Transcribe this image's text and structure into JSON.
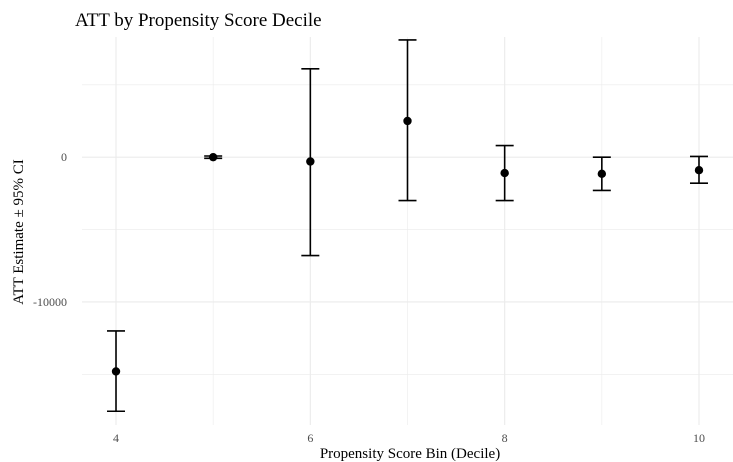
{
  "chart_data": {
    "type": "errorbar",
    "title": "ATT by Propensity Score Decile",
    "xlabel": "Propensity Score Bin (Decile)",
    "ylabel": "ATT Estimate ± 95% CI",
    "x_ticks": [
      4,
      6,
      8,
      10
    ],
    "y_ticks": [
      -10000,
      0
    ],
    "xlim": [
      3.65,
      10.35
    ],
    "ylim": [
      -18500,
      8300
    ],
    "grid": true,
    "points": [
      {
        "x": 4,
        "y": -14800,
        "lower": -17550,
        "upper": -12000
      },
      {
        "x": 5,
        "y": 0,
        "lower": -80,
        "upper": 80
      },
      {
        "x": 6,
        "y": -300,
        "lower": -6800,
        "upper": 6100
      },
      {
        "x": 7,
        "y": 2500,
        "lower": -3000,
        "upper": 8100
      },
      {
        "x": 8,
        "y": -1100,
        "lower": -3000,
        "upper": 800
      },
      {
        "x": 9,
        "y": -1150,
        "lower": -2300,
        "upper": 0
      },
      {
        "x": 10,
        "y": -900,
        "lower": -1800,
        "upper": 50
      }
    ],
    "colors": {
      "marker": "#000000",
      "grid": "#ebebeb",
      "tick_text": "#4d4d4d"
    }
  }
}
